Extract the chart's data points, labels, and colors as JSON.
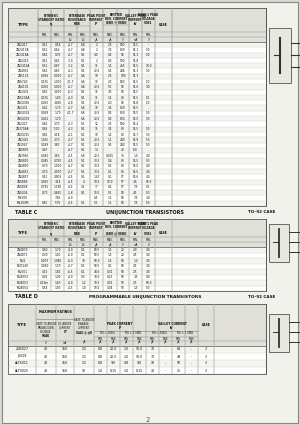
{
  "bg_color": "#f0f0ea",
  "rows_c": [
    [
      "2N2417",
      "0.51",
      "0.54",
      "-4.7",
      "6.8",
      "2",
      "2.5",
      "500",
      "55.5",
      "-"
    ],
    [
      "2N2417A",
      "0.51",
      "0.62",
      "-4.7",
      "6.8",
      "2",
      "2.5",
      "800",
      "55.1",
      "5.0"
    ],
    [
      "2N2418A",
      "0.61",
      "0.75",
      "-4.7",
      "9.1",
      "4.0",
      "0.5",
      "50",
      "55.3",
      "5.0"
    ],
    [
      "2N2419",
      "0.51",
      "0.62",
      "-3.0",
      "9.1",
      "2",
      "0.5",
      "900",
      "55.8",
      "-"
    ],
    [
      "2N2419A",
      "0.51",
      "0.67",
      "-3.2",
      "9.1",
      "11",
      "1.5",
      "465",
      "55.5",
      "10.0"
    ],
    [
      "2N4991",
      "0.61",
      "0.63",
      "-4.3",
      "9.1",
      "40.5",
      "0.5",
      "246",
      "55.3",
      "5.0"
    ],
    [
      "2N5114",
      "0.056",
      "0.000",
      "-4.7",
      "6.6",
      "10",
      "2.5",
      "180",
      "55.3",
      "-"
    ],
    [
      "2N6740",
      "0.155",
      "1.000",
      "-31.7",
      "6.6",
      "15",
      "2.5",
      "500",
      "55.5",
      "5.0"
    ],
    [
      "2N4191",
      "0.050",
      "0.000",
      "-4.7",
      "6.8",
      "40.5",
      "5.5",
      "50",
      "55.6",
      "3.0"
    ],
    [
      "2N3435",
      "0.50",
      "3.000",
      "-6.3",
      "9.1",
      "15",
      "3.5",
      "50",
      "55.5",
      "-"
    ],
    [
      "2N5204A",
      "0.155",
      "1.00",
      "-4.3",
      "9.1",
      "11",
      "1.5",
      "80",
      "55.5",
      "5.5"
    ],
    [
      "2N04390",
      "0.050",
      "3.465",
      "-4.8",
      "9.1",
      "40.5",
      "0.3",
      "50",
      "55.8",
      "5.0"
    ],
    [
      "2N2431",
      "0.42",
      "1.70",
      "-4.7",
      "6.6",
      "10",
      "3.5",
      "800",
      "55.5",
      "-"
    ],
    [
      "2N04334",
      "0.059",
      "1.70",
      "-41.7",
      "6.6",
      "40.5",
      "0.5",
      "800",
      "55.5",
      "5.0"
    ],
    [
      "2N04319",
      "0.052",
      "1.70",
      "",
      "6.6",
      "40.5",
      "0.5",
      "800",
      "55.5",
      "5.0"
    ],
    [
      "2N2427",
      "0.62",
      "3.70",
      "-4.3",
      "9.1",
      "12",
      "2.5",
      "500",
      "55.4",
      "-"
    ],
    [
      "2N3704A",
      "0.45",
      "5.10",
      "-4.3",
      "9.1",
      "15",
      "3.5",
      "80",
      "55.5",
      "5.0"
    ],
    [
      "2N04315",
      "0.81",
      "3.18",
      "-4.1",
      "9.1",
      "10",
      "1.5",
      "80",
      "55.7",
      "5.0"
    ],
    [
      "2N2445",
      "1.055",
      "3.70",
      "-4.7",
      "9.1",
      "40.5",
      "1.1",
      "240",
      "55.9",
      "5.0"
    ],
    [
      "2N3047",
      "0.049",
      "3.83",
      "-4.7",
      "9.1",
      "40.5",
      "0.5",
      "240",
      "55.5",
      "5.0"
    ],
    [
      "2N0891",
      "0.47",
      "-",
      "-4.7",
      "9.1",
      "14",
      "",
      "40",
      "-60",
      "-"
    ],
    [
      "2N3960",
      "0.040",
      "3.83",
      "-4.5",
      "6.0",
      "20.5",
      "0.025",
      "30",
      "1.0",
      "4.0"
    ],
    [
      "2N0891",
      "0.045",
      "3.750",
      "-4.5",
      "9.1",
      "30.5",
      "0.4",
      "80",
      "55.5",
      "5.0"
    ],
    [
      "2N4850",
      "0.70",
      "1.010",
      "-4.7",
      "9.1",
      "30.5",
      "0.1",
      "80",
      "55.5",
      "4.0"
    ],
    [
      "2N4852",
      "0.70",
      "3.070",
      "-4.7",
      "9.1",
      "30.5",
      "0.1",
      "80",
      "55.5",
      "4.0"
    ],
    [
      "2N4857",
      "0.51",
      "0.903",
      "-4.5",
      "9.1",
      "1.47",
      "0.1",
      "97",
      "55.6",
      "4.0"
    ],
    [
      "2N0886",
      "0.055",
      "3.54",
      "-4.5",
      "4",
      "10.5",
      "10.0",
      "97",
      "3.6",
      "65.0"
    ],
    [
      "2N0848",
      "0.745",
      "1.185",
      "-4.5",
      "3.1",
      "17",
      "0.1",
      "97",
      "7.5",
      "5.5"
    ],
    [
      "2N0434",
      "0.73",
      "0.855",
      "-1.8",
      "9.1",
      "10.5",
      "5.5",
      "50",
      "4.5",
      "5.0"
    ],
    [
      "MV100",
      "",
      "7.85",
      "-4.0",
      "",
      "6.5",
      "1.1",
      "50",
      "7.5",
      "3.0"
    ],
    [
      "MV200M",
      "0.55",
      "5.75",
      "-4.5",
      "0.1",
      "5.5",
      "1.1",
      "50",
      "7.5",
      "5.0"
    ]
  ],
  "rows_d": [
    [
      "2N4870",
      "0.60",
      "1.70",
      "-4.0",
      "0.1",
      "50.5",
      "1.5",
      "20",
      "4.0",
      "3.0"
    ],
    [
      "2N4871",
      "0.30",
      "1.50",
      "-6.0",
      "0.1",
      "50.5",
      "1.5",
      "20",
      "4.5",
      "3.0"
    ],
    [
      "MU1",
      "0.007",
      "1.085",
      "-6.0",
      "70",
      "60.0",
      "1.5",
      "50",
      "1.0",
      "3.0"
    ],
    [
      "MU0140",
      "0.060",
      "1.70",
      "-4.7",
      "0.1",
      "50.5",
      "0.1",
      "50",
      "4.5",
      "3.0"
    ],
    [
      "MU501",
      "0.15",
      "1.82",
      "-6.5",
      "0.1",
      "44.5",
      "0.31",
      "50",
      "2.5",
      "3.0"
    ],
    [
      "MU4003",
      "0.01",
      "1.00",
      "-4.0",
      "0.3",
      "70.5",
      "0.25",
      "50",
      "3.5",
      "0.0"
    ],
    [
      "MU4003",
      "0.19m",
      "1.63",
      "-4.0",
      "1.2",
      "10.5",
      "0.01",
      "90",
      "2.5",
      "60.0"
    ],
    [
      "MU4054",
      "0.54",
      "1.50",
      "-4.5",
      "1.0",
      "10.5",
      "0.04",
      "90",
      "1.5",
      "5.0"
    ]
  ],
  "prog_rows": [
    [
      "2N6027",
      "40",
      "150",
      "1.5",
      "0.8",
      "20.0",
      "70",
      "64"
    ],
    [
      "J6028",
      "40",
      "150",
      "1.5",
      "1.0",
      "10.0",
      "70",
      "49"
    ],
    [
      "ALT6011",
      "40",
      "150",
      "1.5",
      "0.8",
      "9.0",
      "10",
      "50"
    ],
    [
      "ALT0025",
      "40",
      "150",
      "10",
      "1.0",
      "0.15",
      "20",
      "25"
    ]
  ]
}
